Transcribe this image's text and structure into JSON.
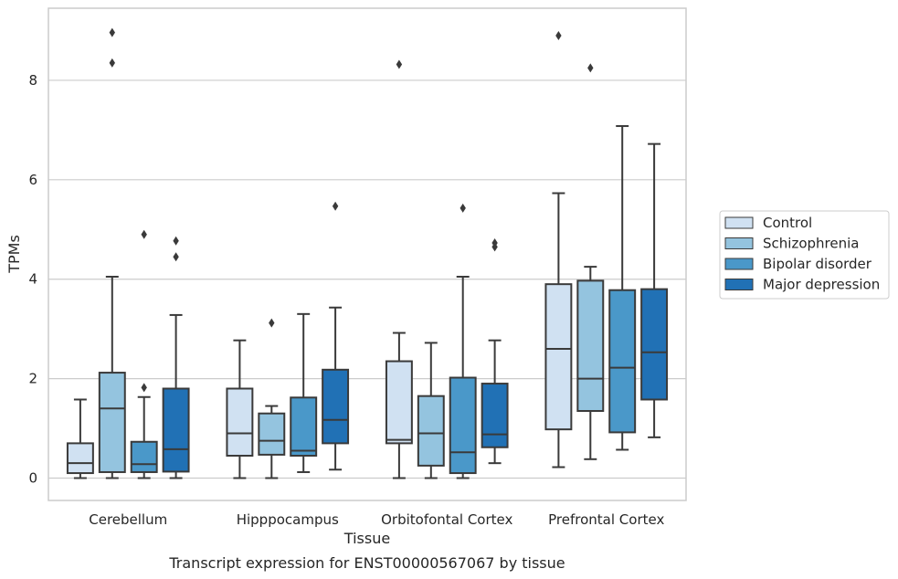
{
  "chart_data": {
    "type": "boxplot",
    "title": "",
    "caption": "Transcript expression for ENST00000567067 by tissue",
    "xlabel": "Tissue",
    "ylabel": "TPMs",
    "ylim": [
      -0.45,
      9.45
    ],
    "yticks": [
      0,
      2,
      4,
      6,
      8
    ],
    "grid": "horizontal",
    "legend_position": "right",
    "categories": [
      "Cerebellum",
      "Hipppocampus",
      "Orbitofontal Cortex",
      "Prefrontal Cortex"
    ],
    "series": [
      {
        "name": "Control",
        "color": "#d0e1f2",
        "boxes": [
          {
            "whislo": 0.0,
            "q1": 0.1,
            "med": 0.3,
            "q3": 0.7,
            "whishi": 1.58,
            "fliers": []
          },
          {
            "whislo": 0.0,
            "q1": 0.45,
            "med": 0.9,
            "q3": 1.8,
            "whishi": 2.77,
            "fliers": []
          },
          {
            "whislo": 0.0,
            "q1": 0.7,
            "med": 0.77,
            "q3": 2.35,
            "whishi": 2.92,
            "fliers": [
              8.32
            ]
          },
          {
            "whislo": 0.22,
            "q1": 0.98,
            "med": 2.6,
            "q3": 3.9,
            "whishi": 5.73,
            "fliers": [
              8.9
            ]
          }
        ]
      },
      {
        "name": "Schizophrenia",
        "color": "#94c4df",
        "boxes": [
          {
            "whislo": 0.0,
            "q1": 0.12,
            "med": 1.4,
            "q3": 2.12,
            "whishi": 4.05,
            "fliers": [
              8.35,
              8.96
            ]
          },
          {
            "whislo": 0.0,
            "q1": 0.47,
            "med": 0.75,
            "q3": 1.3,
            "whishi": 1.45,
            "fliers": [
              3.12
            ]
          },
          {
            "whislo": 0.0,
            "q1": 0.25,
            "med": 0.9,
            "q3": 1.65,
            "whishi": 2.72,
            "fliers": []
          },
          {
            "whislo": 0.38,
            "q1": 1.35,
            "med": 2.0,
            "q3": 3.97,
            "whishi": 4.25,
            "fliers": [
              8.25
            ]
          }
        ]
      },
      {
        "name": "Bipolar disorder",
        "color": "#4a98c9",
        "boxes": [
          {
            "whislo": 0.0,
            "q1": 0.12,
            "med": 0.28,
            "q3": 0.73,
            "whishi": 1.63,
            "fliers": [
              1.82,
              4.9
            ]
          },
          {
            "whislo": 0.12,
            "q1": 0.45,
            "med": 0.55,
            "q3": 1.62,
            "whishi": 3.3,
            "fliers": []
          },
          {
            "whislo": 0.0,
            "q1": 0.1,
            "med": 0.52,
            "q3": 2.02,
            "whishi": 4.05,
            "fliers": [
              5.43
            ]
          },
          {
            "whislo": 0.57,
            "q1": 0.92,
            "med": 2.22,
            "q3": 3.78,
            "whishi": 7.08,
            "fliers": []
          }
        ]
      },
      {
        "name": "Major depression",
        "color": "#2171b5",
        "boxes": [
          {
            "whislo": 0.0,
            "q1": 0.13,
            "med": 0.58,
            "q3": 1.8,
            "whishi": 3.28,
            "fliers": [
              4.45,
              4.77
            ]
          },
          {
            "whislo": 0.17,
            "q1": 0.7,
            "med": 1.17,
            "q3": 2.18,
            "whishi": 3.43,
            "fliers": [
              5.47
            ]
          },
          {
            "whislo": 0.3,
            "q1": 0.62,
            "med": 0.88,
            "q3": 1.9,
            "whishi": 2.77,
            "fliers": [
              4.65,
              4.73
            ]
          },
          {
            "whislo": 0.82,
            "q1": 1.58,
            "med": 2.53,
            "q3": 3.8,
            "whishi": 6.72,
            "fliers": []
          }
        ]
      }
    ]
  }
}
